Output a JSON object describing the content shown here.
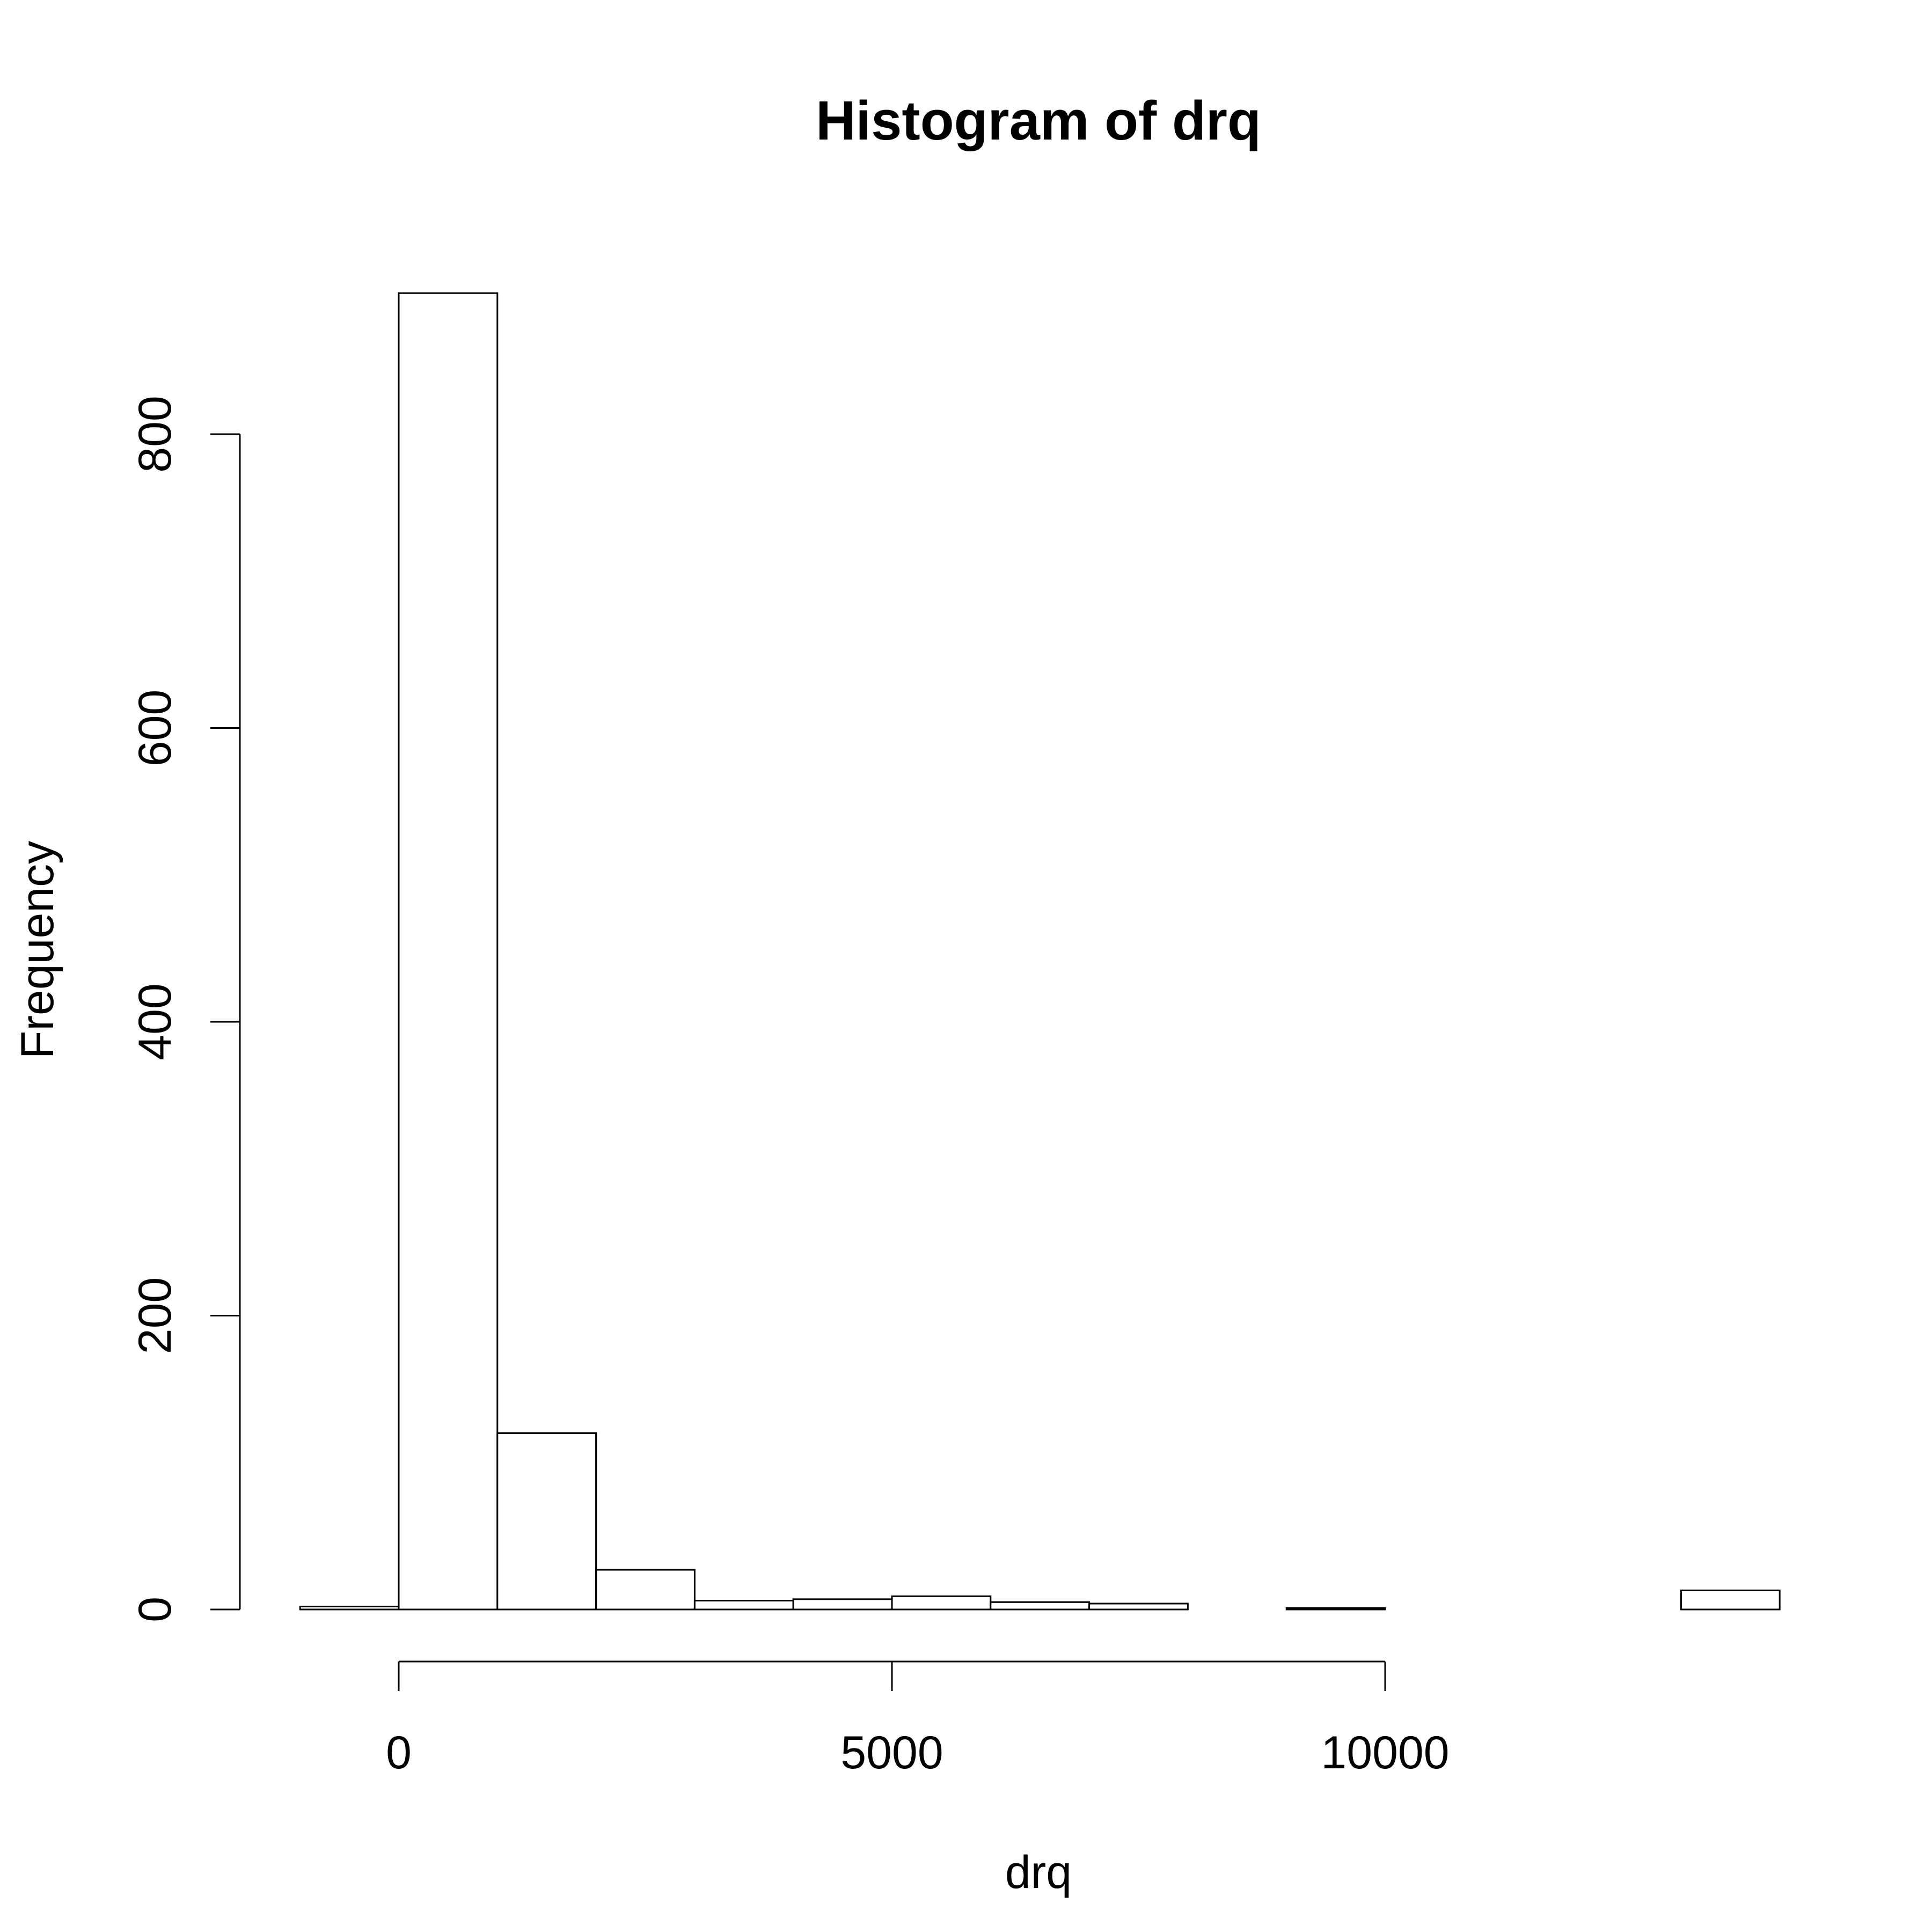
{
  "chart_data": {
    "type": "bar",
    "histogram": true,
    "title": "Histogram of drq",
    "xlabel": "drq",
    "ylabel": "Frequency",
    "xlim": [
      -1000,
      14000
    ],
    "ylim": [
      0,
      900
    ],
    "xticks": [
      0,
      5000,
      10000
    ],
    "xtick_labels": [
      "0",
      "5000",
      "10000"
    ],
    "yticks": [
      0,
      200,
      400,
      600,
      800
    ],
    "ytick_labels": [
      "0",
      "200",
      "400",
      "600",
      "800"
    ],
    "bin_width": 1000,
    "bins": [
      {
        "start": -1000,
        "end": 0,
        "count": 2
      },
      {
        "start": 0,
        "end": 1000,
        "count": 896
      },
      {
        "start": 1000,
        "end": 2000,
        "count": 120
      },
      {
        "start": 2000,
        "end": 3000,
        "count": 27
      },
      {
        "start": 3000,
        "end": 4000,
        "count": 6
      },
      {
        "start": 4000,
        "end": 5000,
        "count": 7
      },
      {
        "start": 5000,
        "end": 6000,
        "count": 9
      },
      {
        "start": 6000,
        "end": 7000,
        "count": 5
      },
      {
        "start": 7000,
        "end": 8000,
        "count": 4
      },
      {
        "start": 8000,
        "end": 9000,
        "count": 0
      },
      {
        "start": 9000,
        "end": 10000,
        "count": 1
      },
      {
        "start": 10000,
        "end": 11000,
        "count": 0
      },
      {
        "start": 11000,
        "end": 12000,
        "count": 0
      },
      {
        "start": 12000,
        "end": 13000,
        "count": 0
      },
      {
        "start": 13000,
        "end": 14000,
        "count": 13
      }
    ],
    "grid": false,
    "legend": "none"
  }
}
